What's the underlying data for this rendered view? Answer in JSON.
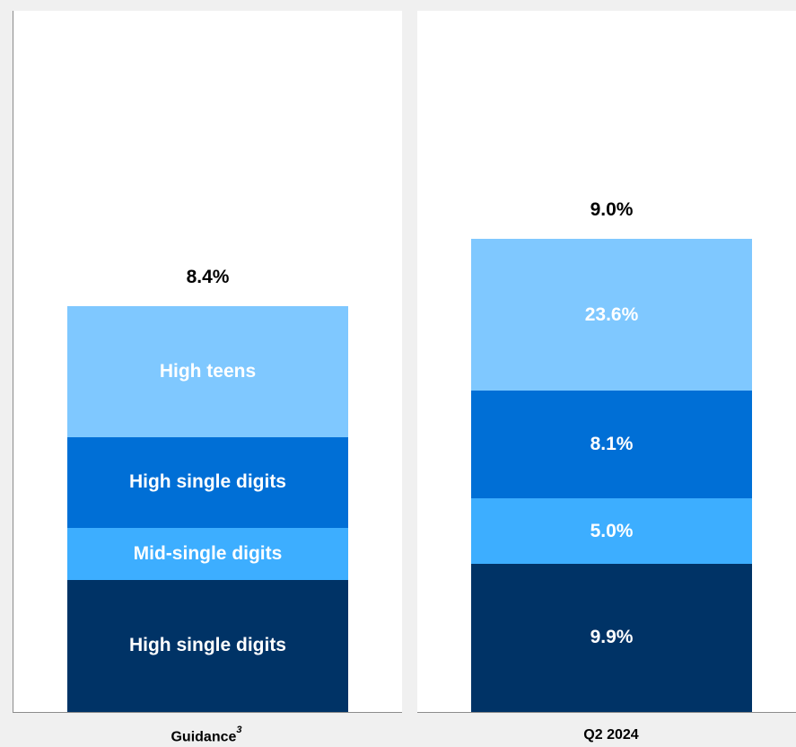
{
  "chart_data": {
    "type": "bar",
    "stacked": true,
    "categories": [
      "Guidance",
      "Q2 2024"
    ],
    "category_footnotes": [
      "3",
      ""
    ],
    "colors": {
      "bottom": "#003366",
      "mid_light": "#3daeff",
      "mid_dark": "#006fd6",
      "top": "#7fc8ff"
    },
    "bars": [
      {
        "category": "Guidance",
        "total_label": "8.4%",
        "segments": [
          {
            "label": "High single digits",
            "value": 20.5,
            "color": "#003366"
          },
          {
            "label": "Mid-single digits",
            "value": 8.1,
            "color": "#3daeff"
          },
          {
            "label": "High single digits",
            "value": 14.0,
            "color": "#006fd6"
          },
          {
            "label": "High teens",
            "value": 20.3,
            "color": "#7fc8ff"
          }
        ]
      },
      {
        "category": "Q2 2024",
        "total_label": "9.0%",
        "segments": [
          {
            "label": "9.9%",
            "value": 23.0,
            "color": "#003366"
          },
          {
            "label": "5.0%",
            "value": 10.1,
            "color": "#3daeff"
          },
          {
            "label": "8.1%",
            "value": 16.7,
            "color": "#006fd6"
          },
          {
            "label": "23.6%",
            "value": 23.6,
            "color": "#7fc8ff"
          }
        ]
      }
    ]
  }
}
